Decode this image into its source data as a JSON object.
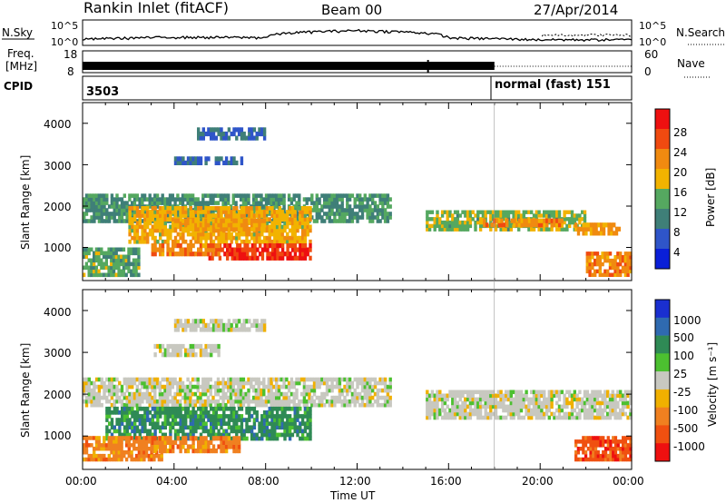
{
  "header": {
    "title": "Rankin Inlet (fitACF)",
    "beam": "Beam 00",
    "date": "27/Apr/2014"
  },
  "noise_panel": {
    "left_label": "N.Sky",
    "right_label": "N.Search",
    "left_ticks": [
      "10^5",
      "10^0"
    ],
    "right_ticks": [
      "10^5",
      "10^0"
    ]
  },
  "freq_panel": {
    "left_label_line1": "Freq.",
    "left_label_line2": "[MHz]",
    "left_ticks": [
      "18",
      "8"
    ],
    "right_label": "Nave",
    "right_ticks": [
      "60",
      "0"
    ]
  },
  "cpid_panel": {
    "label": "CPID",
    "value_1": "3503",
    "value_2": "normal (fast) 151"
  },
  "x_axis": {
    "label": "Time UT",
    "ticks": [
      "00:00",
      "04:00",
      "08:00",
      "12:00",
      "16:00",
      "20:00",
      "00:00"
    ]
  },
  "power_panel": {
    "ylabel": "Slant Range [km]",
    "yticks": [
      "4000",
      "3000",
      "2000",
      "1000"
    ],
    "colorbar_label": "Power [dB]",
    "colorbar_ticks": [
      "28",
      "24",
      "20",
      "16",
      "12",
      "8",
      "4"
    ]
  },
  "velocity_panel": {
    "ylabel": "Slant Range [km]",
    "yticks": [
      "4000",
      "3000",
      "2000",
      "1000"
    ],
    "colorbar_label": "Velocity [m s⁻¹]",
    "colorbar_ticks": [
      "1000",
      "500",
      "100",
      "25",
      "-25",
      "-100",
      "-500",
      "-1000"
    ]
  },
  "colors": {
    "power_scale": [
      "#0a1fd8",
      "#2f55c9",
      "#3f7f78",
      "#55a860",
      "#f2b300",
      "#f08a10",
      "#f04a10",
      "#ee1010"
    ],
    "velocity_scale": [
      "#1a2fd0",
      "#2f6ab0",
      "#2f8a55",
      "#4cc030",
      "#c8c8c0",
      "#f0b000",
      "#f08020",
      "#f05010",
      "#ee1010"
    ]
  },
  "chart_data": [
    {
      "type": "line",
      "title": "N.Sky / N.Search",
      "x": [
        "00:00",
        "04:00",
        "08:00",
        "12:00",
        "16:00",
        "20:00",
        "24:00"
      ],
      "series": [
        {
          "name": "N.Sky",
          "values": [
            10,
            30,
            25,
            1000,
            20,
            8,
            8
          ]
        },
        {
          "name": "N.Search",
          "values": [
            null,
            null,
            null,
            null,
            null,
            100,
            100
          ]
        }
      ],
      "ylim_log": [
        1,
        100000
      ]
    },
    {
      "type": "line",
      "title": "Freq. / Nave",
      "x": [
        "00:00",
        "18:00",
        "24:00"
      ],
      "series": [
        {
          "name": "Freq. [MHz]",
          "values": [
            10,
            10,
            10
          ]
        },
        {
          "name": "Nave",
          "values": [
            20,
            20,
            20
          ]
        }
      ],
      "ylim": [
        8,
        18
      ]
    },
    {
      "type": "heatmap",
      "title": "Power [dB]",
      "xlabel": "Time UT",
      "ylabel": "Slant Range [km]",
      "xlim_hours": [
        0,
        24
      ],
      "ylim": [
        200,
        4500
      ],
      "zlim": [
        0,
        30
      ],
      "regions": [
        {
          "t": [
            0,
            13.5
          ],
          "range": [
            1600,
            2300
          ],
          "value": 10
        },
        {
          "t": [
            2,
            10
          ],
          "range": [
            1100,
            2000
          ],
          "value": 18
        },
        {
          "t": [
            5.5,
            10
          ],
          "range": [
            700,
            1100
          ],
          "value": 28
        },
        {
          "t": [
            3,
            6
          ],
          "range": [
            800,
            1100
          ],
          "value": 22
        },
        {
          "t": [
            4,
            8
          ],
          "range": [
            1400,
            1700
          ],
          "value": 20
        },
        {
          "t": [
            15,
            22
          ],
          "range": [
            1400,
            1900
          ],
          "value": 14
        },
        {
          "t": [
            17.5,
            21
          ],
          "range": [
            1500,
            1700
          ],
          "value": 22
        },
        {
          "t": [
            21.5,
            23.5
          ],
          "range": [
            1300,
            1600
          ],
          "value": 20
        },
        {
          "t": [
            22,
            24
          ],
          "range": [
            300,
            900
          ],
          "value": 22
        },
        {
          "t": [
            0,
            2.5
          ],
          "range": [
            300,
            1000
          ],
          "value": 12
        },
        {
          "t": [
            5,
            8
          ],
          "range": [
            3600,
            3900
          ],
          "value": 6
        },
        {
          "t": [
            4,
            7
          ],
          "range": [
            3000,
            3200
          ],
          "value": 6
        }
      ]
    },
    {
      "type": "heatmap",
      "title": "Velocity [m s⁻¹]",
      "xlabel": "Time UT",
      "ylabel": "Slant Range [km]",
      "xlim_hours": [
        0,
        24
      ],
      "ylim": [
        200,
        4500
      ],
      "zlim": [
        -1000,
        1000
      ],
      "regions": [
        {
          "t": [
            0,
            13.5
          ],
          "range": [
            1700,
            2400
          ],
          "value": 0
        },
        {
          "t": [
            15,
            24
          ],
          "range": [
            1400,
            2100
          ],
          "value": 0
        },
        {
          "t": [
            1,
            10
          ],
          "range": [
            900,
            1700
          ],
          "value": 100
        },
        {
          "t": [
            0,
            3.5
          ],
          "range": [
            400,
            1000
          ],
          "value": -300
        },
        {
          "t": [
            3,
            7
          ],
          "range": [
            600,
            1000
          ],
          "value": -100
        },
        {
          "t": [
            21.5,
            24
          ],
          "range": [
            400,
            1000
          ],
          "value": -500
        },
        {
          "t": [
            4,
            8
          ],
          "range": [
            3500,
            3800
          ],
          "value": 0
        },
        {
          "t": [
            3,
            6
          ],
          "range": [
            2900,
            3200
          ],
          "value": 0
        }
      ]
    }
  ]
}
